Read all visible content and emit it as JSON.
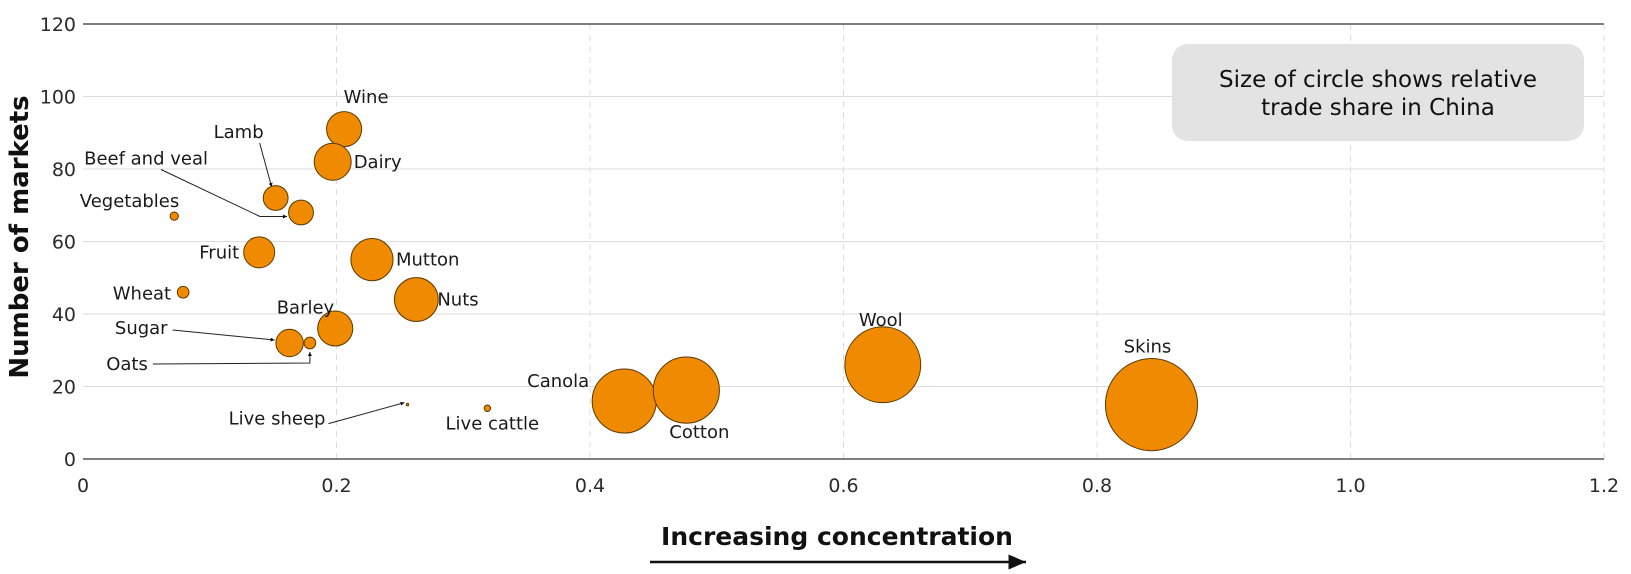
{
  "chart_data": {
    "type": "scatter",
    "title": "",
    "xlabel": "Increasing concentration",
    "ylabel": "Number of markets",
    "xlim": [
      0,
      1.2
    ],
    "ylim": [
      0,
      120
    ],
    "x_ticks": [
      "0",
      "0.2",
      "0.4",
      "0.6",
      "0.8",
      "1.0",
      "1.2"
    ],
    "y_ticks": [
      "0",
      "20",
      "40",
      "60",
      "80",
      "100",
      "120"
    ],
    "grid": "vertical dashed, horizontal solid",
    "bubble_size_meaning": "relative trade share in China",
    "annotation": {
      "line1": "Size of circle shows relative",
      "line2": "trade share in China"
    },
    "colors": {
      "bubble_fill": "#f08a00",
      "bubble_stroke": "#5a3a00",
      "note_background": "#e3e3e3",
      "axis": "#555555",
      "grid": "#dcdcdc"
    },
    "points": [
      {
        "label": "Wine",
        "x": 0.206,
        "y": 91,
        "size": 0.9
      },
      {
        "label": "Dairy",
        "x": 0.197,
        "y": 82,
        "size": 1.0
      },
      {
        "label": "Lamb",
        "x": 0.152,
        "y": 72,
        "size": 0.45
      },
      {
        "label": "Beef and veal",
        "x": 0.172,
        "y": 68,
        "size": 0.45
      },
      {
        "label": "Vegetables",
        "x": 0.072,
        "y": 67,
        "size": 0.05
      },
      {
        "label": "Fruit",
        "x": 0.139,
        "y": 57,
        "size": 0.7
      },
      {
        "label": "Mutton",
        "x": 0.228,
        "y": 55,
        "size": 1.3
      },
      {
        "label": "Wheat",
        "x": 0.079,
        "y": 46,
        "size": 0.1
      },
      {
        "label": "Nuts",
        "x": 0.263,
        "y": 44,
        "size": 1.4
      },
      {
        "label": "Barley",
        "x": 0.199,
        "y": 36,
        "size": 0.9
      },
      {
        "label": "Sugar",
        "x": 0.163,
        "y": 32,
        "size": 0.55
      },
      {
        "label": "Oats",
        "x": 0.179,
        "y": 32,
        "size": 0.1
      },
      {
        "label": "Canola",
        "x": 0.427,
        "y": 16,
        "size": 3.0
      },
      {
        "label": "Cotton",
        "x": 0.476,
        "y": 19,
        "size": 3.2
      },
      {
        "label": "Live sheep",
        "x": 0.256,
        "y": 15,
        "size": 0.001
      },
      {
        "label": "Live cattle",
        "x": 0.319,
        "y": 14,
        "size": 0.03
      },
      {
        "label": "Wool",
        "x": 0.631,
        "y": 26,
        "size": 4.2
      },
      {
        "label": "Skins",
        "x": 0.843,
        "y": 15,
        "size": 6.2
      }
    ]
  }
}
